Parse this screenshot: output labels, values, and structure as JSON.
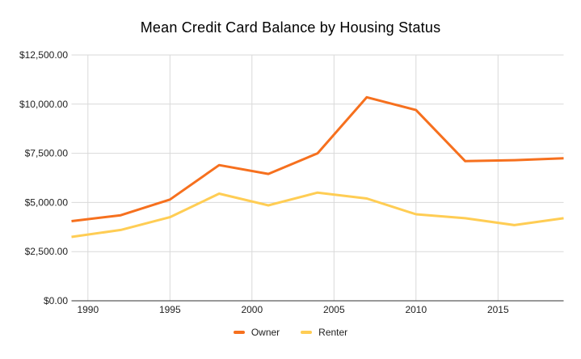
{
  "title": "Mean Credit Card Balance by Housing Status",
  "colors": {
    "owner_line": "#F6701E",
    "renter_line": "#FFCD54",
    "gridline": "#D9D9D9",
    "axis_line": "#333333",
    "tick_text": "#222222",
    "title_text": "#000000",
    "background": "#FFFFFF"
  },
  "chart_data": {
    "type": "line",
    "title": "Mean Credit Card Balance by Housing Status",
    "xlabel": "",
    "ylabel": "",
    "grid": true,
    "legend_position": "bottom",
    "xlim": [
      1989,
      2019
    ],
    "ylim": [
      0,
      12500
    ],
    "x": [
      1989,
      1992,
      1995,
      1998,
      2001,
      2004,
      2007,
      2010,
      2013,
      2016,
      2019
    ],
    "series": [
      {
        "name": "Owner",
        "color": "#F6701E",
        "values": [
          4050,
          4350,
          5150,
          6900,
          6450,
          7500,
          10350,
          9700,
          7100,
          7150,
          7250
        ]
      },
      {
        "name": "Renter",
        "color": "#FFCD54",
        "values": [
          3250,
          3600,
          4250,
          5450,
          4850,
          5500,
          5200,
          4400,
          4200,
          3850,
          4200
        ]
      }
    ],
    "x_ticks": [
      {
        "value": 1990,
        "label": "1990"
      },
      {
        "value": 1995,
        "label": "1995"
      },
      {
        "value": 2000,
        "label": "2000"
      },
      {
        "value": 2005,
        "label": "2005"
      },
      {
        "value": 2010,
        "label": "2010"
      },
      {
        "value": 2015,
        "label": "2015"
      }
    ],
    "y_ticks": [
      {
        "value": 0,
        "label": "$0.00"
      },
      {
        "value": 2500,
        "label": "$2,500.00"
      },
      {
        "value": 5000,
        "label": "$5,000.00"
      },
      {
        "value": 7500,
        "label": "$7,500.00"
      },
      {
        "value": 10000,
        "label": "$10,000.00"
      },
      {
        "value": 12500,
        "label": "$12,500.00"
      }
    ]
  }
}
